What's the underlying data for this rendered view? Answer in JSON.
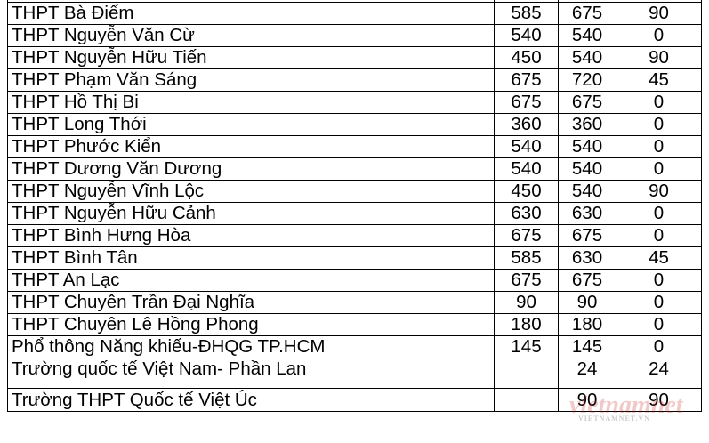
{
  "rows": [
    {
      "name": "",
      "a": "",
      "b": "",
      "c": ""
    },
    {
      "name": "THPT Bà Điểm",
      "a": "585",
      "b": "675",
      "c": "90"
    },
    {
      "name": "THPT Nguyễn Văn Cừ",
      "a": "540",
      "b": "540",
      "c": "0"
    },
    {
      "name": "THPT Nguyễn Hữu Tiến",
      "a": "450",
      "b": "540",
      "c": "90"
    },
    {
      "name": "THPT Phạm Văn Sáng",
      "a": "675",
      "b": "720",
      "c": "45"
    },
    {
      "name": "THPT Hồ Thị Bi",
      "a": "675",
      "b": "675",
      "c": "0"
    },
    {
      "name": "THPT Long Thới",
      "a": "360",
      "b": "360",
      "c": "0"
    },
    {
      "name": "THPT Phước Kiển",
      "a": "540",
      "b": "540",
      "c": "0"
    },
    {
      "name": "THPT Dương Văn Dương",
      "a": "540",
      "b": "540",
      "c": "0"
    },
    {
      "name": "THPT Nguyễn Vĩnh Lộc",
      "a": "450",
      "b": "540",
      "c": "90"
    },
    {
      "name": "THPT Nguyễn Hữu Cảnh",
      "a": "630",
      "b": "630",
      "c": "0"
    },
    {
      "name": "THPT Bình Hưng Hòa",
      "a": "675",
      "b": "675",
      "c": "0"
    },
    {
      "name": "THPT Bình Tân",
      "a": "585",
      "b": "630",
      "c": "45"
    },
    {
      "name": "THPT An Lạc",
      "a": "675",
      "b": "675",
      "c": "0"
    },
    {
      "name": "THPT Chuyên Trần Đại Nghĩa",
      "a": "90",
      "b": "90",
      "c": "0"
    },
    {
      "name": "THPT Chuyên Lê Hồng Phong",
      "a": "180",
      "b": "180",
      "c": "0"
    },
    {
      "name": "Phổ thông Năng khiếu-ĐHQG TP.HCM",
      "a": "145",
      "b": "145",
      "c": "0"
    },
    {
      "name": "Trường quốc tế Việt Nam- Phần Lan",
      "a": "",
      "b": "24",
      "c": "24"
    },
    {
      "name": "Trường THPT Quốc tế Việt Úc",
      "a": "",
      "b": "90",
      "c": "90"
    }
  ],
  "watermark": {
    "logo": "vietnamnet",
    "sub": "VIETNAMNET.VN",
    "color": "#c82828"
  }
}
